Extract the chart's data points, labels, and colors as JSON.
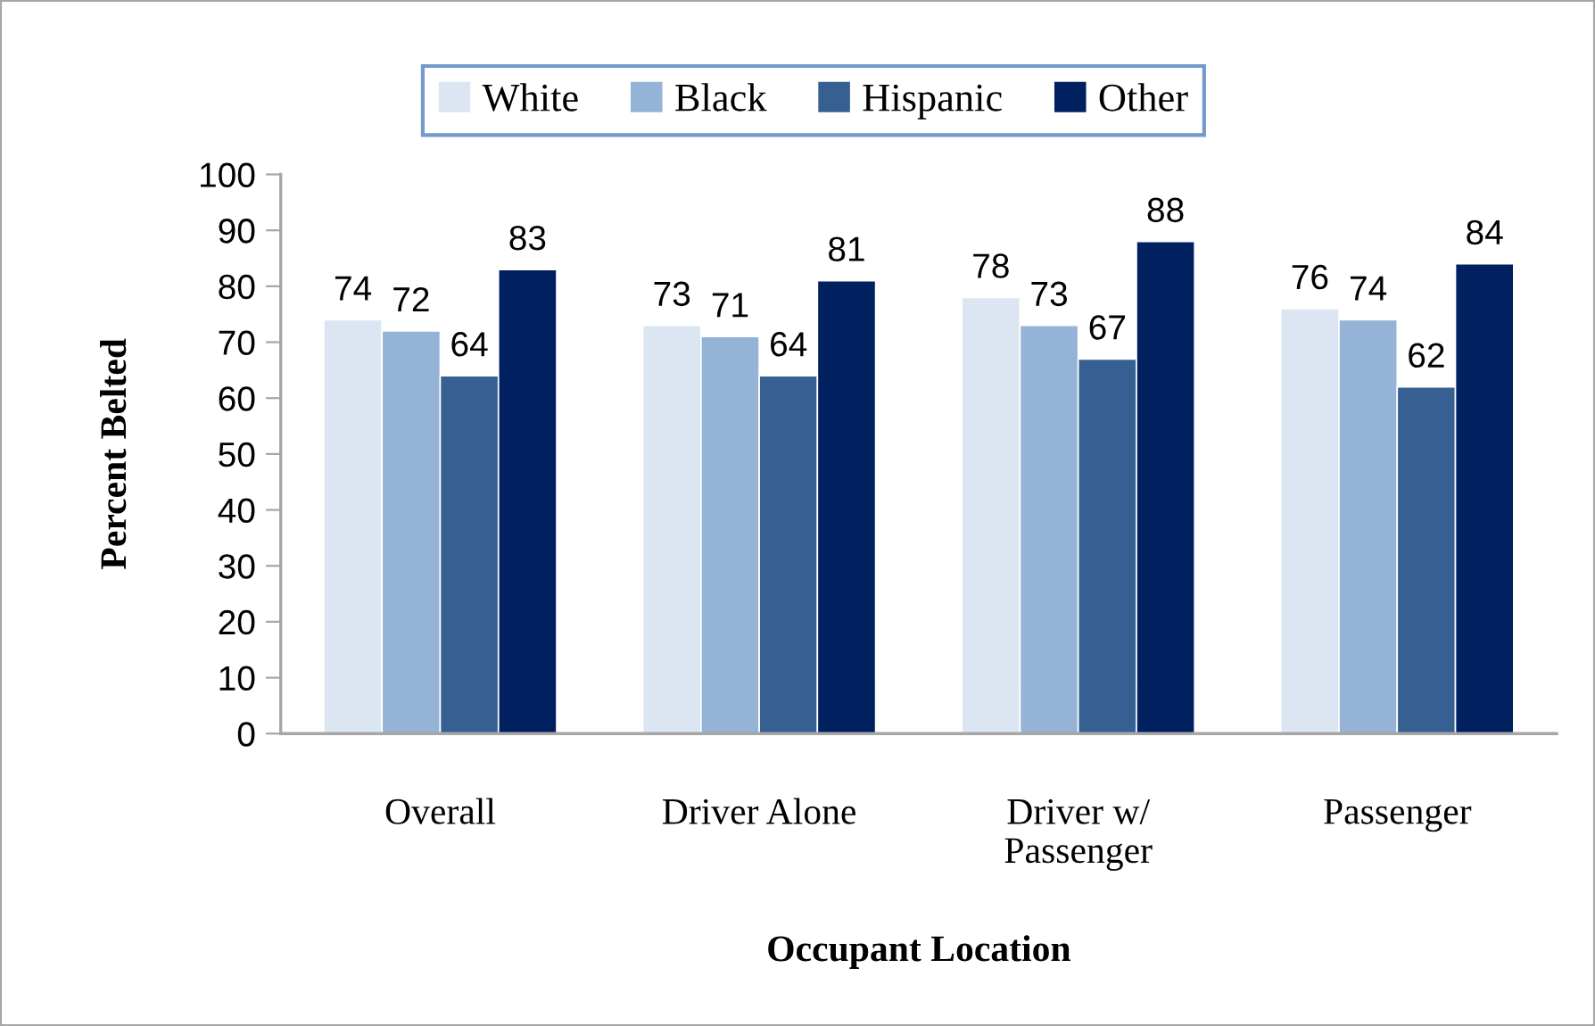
{
  "chart_data": {
    "type": "bar",
    "xlabel": "Occupant Location",
    "ylabel": "Percent Belted",
    "categories": [
      "Overall",
      "Driver Alone",
      "Driver w/\nPassenger",
      "Passenger"
    ],
    "series": [
      {
        "name": "White",
        "color": "#dce6f2",
        "values": [
          74,
          73,
          78,
          76
        ]
      },
      {
        "name": "Black",
        "color": "#95b3d7",
        "values": [
          72,
          71,
          73,
          74
        ]
      },
      {
        "name": "Hispanic",
        "color": "#376092",
        "values": [
          64,
          64,
          67,
          62
        ]
      },
      {
        "name": "Other",
        "color": "#002060",
        "values": [
          83,
          81,
          88,
          84
        ]
      }
    ],
    "ylim": [
      0,
      100
    ],
    "yticks": [
      0,
      10,
      20,
      30,
      40,
      50,
      60,
      70,
      80,
      90,
      100
    ],
    "data_labels": true,
    "grid": false,
    "legend": "top"
  }
}
